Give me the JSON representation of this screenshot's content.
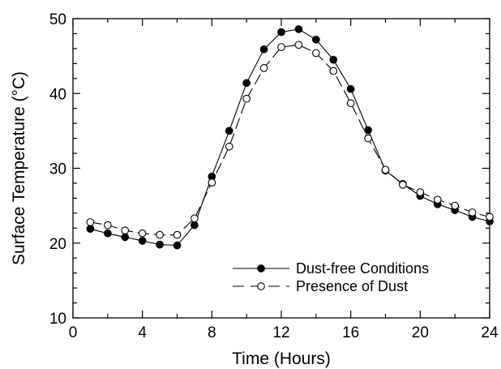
{
  "chart_data": {
    "type": "line",
    "xlabel": "Time (Hours)",
    "ylabel": "Surface Temperature  (°C)",
    "xlim": [
      0,
      24
    ],
    "ylim": [
      10,
      50
    ],
    "xticks": [
      0,
      4,
      8,
      12,
      16,
      20,
      24
    ],
    "yticks": [
      10,
      20,
      30,
      40,
      50
    ],
    "grid": false,
    "legend_position": "lower-right",
    "x": [
      1,
      2,
      3,
      4,
      5,
      6,
      7,
      8,
      9,
      10,
      11,
      12,
      13,
      14,
      15,
      16,
      17,
      18,
      19,
      20,
      21,
      22,
      23,
      24
    ],
    "series": [
      {
        "name": "Dust-free Conditions",
        "marker": "filled-circle",
        "line": "solid",
        "values": [
          21.9,
          21.3,
          20.8,
          20.3,
          19.8,
          19.7,
          22.4,
          28.9,
          35.0,
          41.4,
          45.9,
          48.2,
          48.6,
          47.2,
          44.5,
          40.6,
          35.1,
          29.7,
          27.9,
          26.3,
          25.2,
          24.4,
          23.5,
          22.9
        ]
      },
      {
        "name": "Presence of Dust",
        "marker": "open-circle",
        "line": "dashed",
        "values": [
          22.8,
          22.4,
          21.7,
          21.3,
          21.1,
          21.1,
          23.3,
          28.1,
          32.9,
          39.3,
          43.4,
          46.2,
          46.5,
          45.4,
          43.0,
          38.7,
          34.0,
          29.8,
          27.8,
          26.8,
          25.8,
          25.0,
          24.1,
          23.5
        ]
      }
    ],
    "colors": {
      "axis": "#000000",
      "line": "#000000",
      "fill": "#000000",
      "open_fill": "#ffffff"
    }
  }
}
